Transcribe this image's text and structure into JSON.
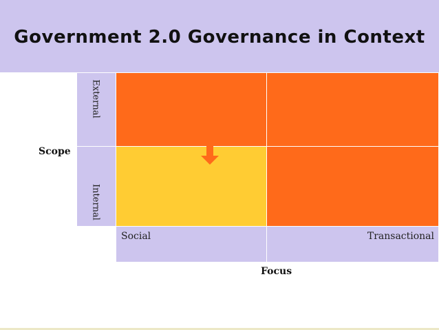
{
  "title": "Government 2.0 Governance in Context",
  "axes": {
    "y_title": "Scope",
    "x_title": "Focus",
    "y_labels": {
      "top": "External",
      "bottom": "Internal"
    },
    "x_labels": {
      "left": "Social",
      "right": "Transactional"
    }
  },
  "colors": {
    "header_bg": "#cdc5ee",
    "orange": "#ff6a1a",
    "yellow": "#ffcc33",
    "arrow": "#ff6a1a"
  },
  "quadrants": {
    "external_social": "orange",
    "external_transactional": "orange",
    "internal_social": "yellow",
    "internal_transactional": "orange"
  },
  "icons": {
    "arrow": "down-arrow-icon"
  }
}
